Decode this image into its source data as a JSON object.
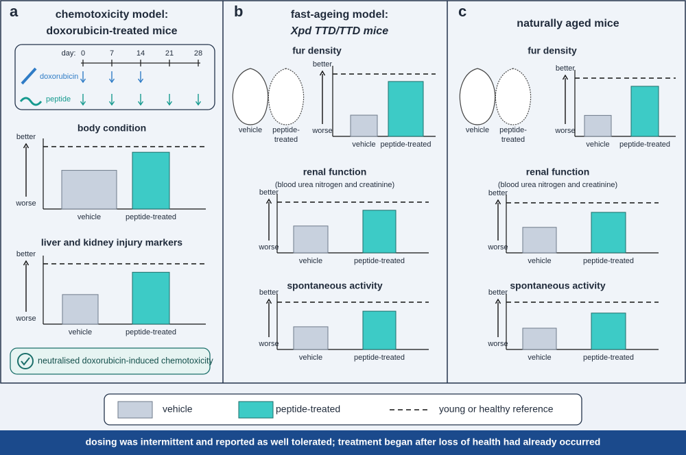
{
  "panels": [
    {
      "letter": "a",
      "title": [
        "chemotoxicity model:",
        "doxorubicin-treated mice"
      ],
      "schedule": {
        "day_label": "day:",
        "days": [
          0,
          7,
          14,
          21,
          28
        ],
        "rows": [
          {
            "name": "doxorubicin",
            "days": [
              0,
              7,
              14
            ]
          },
          {
            "name": "peptide",
            "days": [
              0,
              7,
              14,
              21,
              28
            ]
          }
        ]
      },
      "charts": [
        {
          "title": "body condition",
          "top_label": "better",
          "bottom_label": "worse",
          "reference": 100,
          "categories": [
            "vehicle",
            "peptide-treated"
          ],
          "values": [
            62,
            91
          ]
        },
        {
          "title": "liver and kidney injury markers",
          "top_label": "better",
          "bottom_label": "worse",
          "reference": 100,
          "categories": [
            "vehicle",
            "peptide-treated"
          ],
          "values": [
            49,
            86
          ]
        }
      ],
      "note": "neutralised doxorubicin-induced chemotoxicity"
    },
    {
      "letter": "b",
      "title": [
        "fast-ageing model:",
        "Xpd TTD/TTD mice"
      ],
      "image_labels": [
        [
          "vehicle"
        ],
        [
          "peptide-",
          "treated"
        ]
      ],
      "charts": [
        {
          "title": "fur density",
          "top_label": "better",
          "bottom_label": "worse",
          "reference": 100,
          "categories": [
            "vehicle",
            "peptide-treated"
          ],
          "values": [
            34,
            88
          ]
        },
        {
          "title": "renal function",
          "subtitle": "(blood urea nitrogen and creatinine)",
          "top_label": "better",
          "bottom_label": "worse",
          "reference": 100,
          "categories": [
            "vehicle",
            "peptide-treated"
          ],
          "values": [
            53,
            84
          ]
        },
        {
          "title": "spontaneous activity",
          "top_label": "better",
          "bottom_label": "worse",
          "reference": 100,
          "categories": [
            "vehicle",
            "peptide-treated"
          ],
          "values": [
            48,
            81
          ]
        }
      ]
    },
    {
      "letter": "c",
      "title": [
        "naturally aged mice"
      ],
      "image_labels": [
        [
          "vehicle"
        ],
        [
          "peptide-",
          "treated"
        ]
      ],
      "charts": [
        {
          "title": "fur density",
          "top_label": "better",
          "bottom_label": "worse",
          "reference": 100,
          "categories": [
            "vehicle",
            "peptide-treated"
          ],
          "values": [
            36,
            86
          ]
        },
        {
          "title": "renal function",
          "subtitle": "(blood urea nitrogen and creatinine)",
          "top_label": "better",
          "bottom_label": "worse",
          "reference": 100,
          "categories": [
            "vehicle",
            "peptide-treated"
          ],
          "values": [
            51,
            81
          ]
        },
        {
          "title": "spontaneous activity",
          "top_label": "better",
          "bottom_label": "worse",
          "reference": 100,
          "categories": [
            "vehicle",
            "peptide-treated"
          ],
          "values": [
            45,
            77
          ]
        }
      ]
    }
  ],
  "legend": {
    "items": [
      {
        "name": "vehicle",
        "color": "#c8d1de"
      },
      {
        "name": "peptide-treated",
        "color": "#3dcbc6"
      }
    ],
    "reference": "young or healthy reference"
  },
  "footer": "dosing was intermittent and reported as well tolerated; treatment began after loss of health had already occurred"
}
